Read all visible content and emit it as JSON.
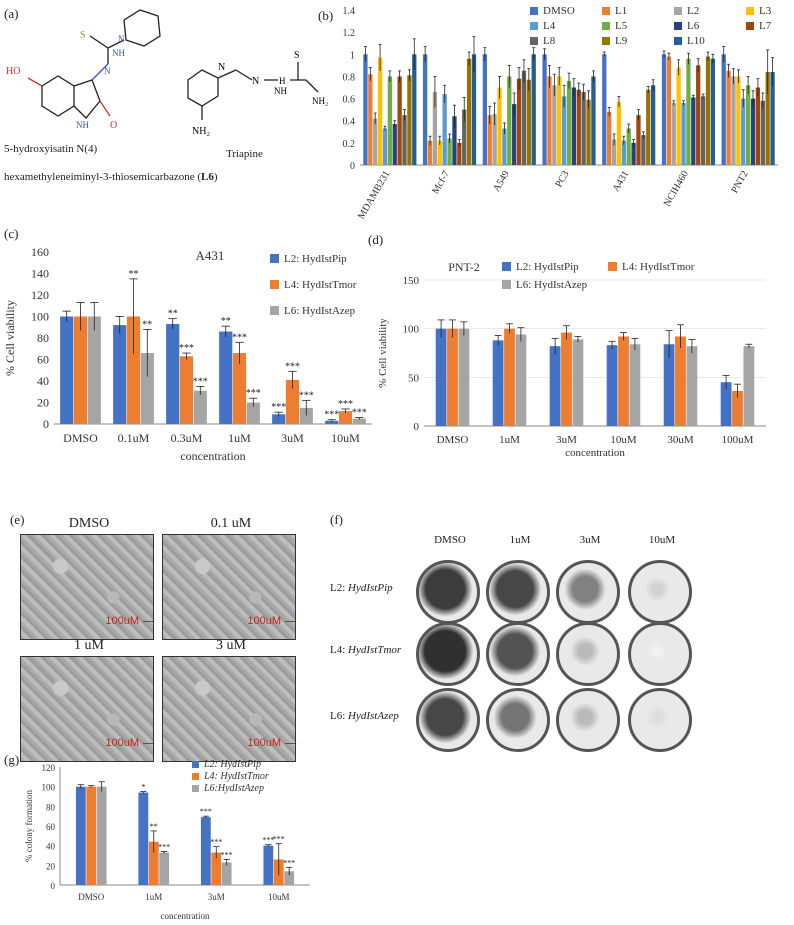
{
  "panel_a": {
    "label": "(a)",
    "molecule1_caption1": "5-hydroxyisatin N(4)",
    "molecule1_caption2": "hexamethyleneiminyl-3-thiosemicarbazone (",
    "molecule1_caption_bold": "L6",
    "molecule1_caption_end": ")",
    "molecule2_caption": "Triapine",
    "atoms": {
      "HO": "HO",
      "N": "N",
      "NH": "NH",
      "NH2": "NH₂",
      "H": "H",
      "O": "O",
      "S": "S",
      "N2": "N"
    }
  },
  "panel_b": {
    "label": "(b)"
  },
  "panel_c": {
    "label": "(c)"
  },
  "panel_d": {
    "label": "(d)"
  },
  "panel_e": {
    "label": "(e)",
    "images": [
      {
        "title": "DMSO",
        "scale": "100uM"
      },
      {
        "title": "0.1 uM",
        "scale": "100uM"
      },
      {
        "title": "1 uM",
        "scale": "100uM"
      },
      {
        "title": "3 uM",
        "scale": "100uM"
      }
    ]
  },
  "panel_f": {
    "label": "(f)",
    "columns": [
      "DMSO",
      "1uM",
      "3uM",
      "10uM"
    ],
    "rows": [
      "L2: HydIstPip",
      "L4: HydIstTmor",
      "L6: HydIstAzep"
    ],
    "row_prefixes": [
      "L2: ",
      "L4: ",
      "L6: "
    ],
    "row_names": [
      "HydIstPip",
      "HydIstTmor",
      "HydIstAzep"
    ],
    "density": [
      [
        0.85,
        0.8,
        0.55,
        0.2
      ],
      [
        0.9,
        0.75,
        0.3,
        0.05
      ],
      [
        0.8,
        0.6,
        0.3,
        0.15
      ]
    ]
  },
  "panel_g": {
    "label": "(g)"
  },
  "chart_data": [
    {
      "id": "b",
      "type": "bar",
      "categories": [
        "MDAMB231",
        "Mcf-7",
        "A549",
        "PC3",
        "A431",
        "NCIH460",
        "PNT2"
      ],
      "ylim": [
        0,
        1.4
      ],
      "yticks": [
        0,
        0.2,
        0.4,
        0.6,
        0.8,
        1,
        1.2,
        1.4
      ],
      "ytick_labels": [
        "0",
        "0.2",
        "0.4",
        "0.6",
        "0.8",
        "1",
        "1.2",
        "1.4"
      ],
      "series": [
        {
          "name": "DMSO",
          "color": "#4472C4",
          "values": [
            1,
            1,
            1,
            1,
            1,
            1,
            1
          ],
          "err": [
            0.07,
            0.07,
            0.06,
            0.05,
            0.02,
            0.03,
            0.07
          ]
        },
        {
          "name": "L1",
          "color": "#ED7D31",
          "values": [
            0.82,
            0.22,
            0.45,
            0.8,
            0.48,
            0.98,
            0.85
          ],
          "err": [
            0.06,
            0.04,
            0.08,
            0.1,
            0.04,
            0.03,
            0.06
          ]
        },
        {
          "name": "L2",
          "color": "#A5A5A5",
          "values": [
            0.42,
            0.66,
            0.46,
            0.72,
            0.23,
            0.56,
            0.8
          ],
          "err": [
            0.05,
            0.14,
            0.1,
            0.1,
            0.05,
            0.02,
            0.07
          ]
        },
        {
          "name": "L3",
          "color": "#FFC000",
          "values": [
            0.97,
            0.22,
            0.7,
            0.8,
            0.57,
            0.88,
            0.8
          ],
          "err": [
            0.12,
            0.04,
            0.1,
            0.08,
            0.05,
            0.07,
            0.06
          ]
        },
        {
          "name": "L4",
          "color": "#5B9BD5",
          "values": [
            0.33,
            0.64,
            0.33,
            0.62,
            0.22,
            0.56,
            0.6
          ],
          "err": [
            0.02,
            0.08,
            0.05,
            0.1,
            0.04,
            0.02,
            0.08
          ]
        },
        {
          "name": "L5",
          "color": "#70AD47",
          "values": [
            0.8,
            0.24,
            0.8,
            0.76,
            0.33,
            0.96,
            0.72
          ],
          "err": [
            0.05,
            0.04,
            0.1,
            0.07,
            0.04,
            0.05,
            0.08
          ]
        },
        {
          "name": "L6",
          "color": "#264478",
          "values": [
            0.37,
            0.44,
            0.55,
            0.7,
            0.2,
            0.61,
            0.6
          ],
          "err": [
            0.03,
            0.1,
            0.1,
            0.08,
            0.03,
            0.02,
            0.07
          ]
        },
        {
          "name": "L7",
          "color": "#9E480E",
          "values": [
            0.8,
            0.2,
            0.78,
            0.68,
            0.45,
            0.9,
            0.7
          ],
          "err": [
            0.05,
            0.03,
            0.1,
            0.06,
            0.05,
            0.06,
            0.08
          ]
        },
        {
          "name": "L8",
          "color": "#636363",
          "values": [
            0.45,
            0.5,
            0.85,
            0.66,
            0.27,
            0.62,
            0.58
          ],
          "err": [
            0.05,
            0.11,
            0.1,
            0.07,
            0.03,
            0.02,
            0.07
          ]
        },
        {
          "name": "L9",
          "color": "#997300",
          "values": [
            0.81,
            0.96,
            0.77,
            0.59,
            0.68,
            0.98,
            0.84
          ],
          "err": [
            0.05,
            0.06,
            0.1,
            0.08,
            0.03,
            0.04,
            0.2
          ]
        },
        {
          "name": "L10",
          "color": "#255E91",
          "values": [
            1,
            1,
            1,
            0.8,
            0.72,
            0.96,
            0.84
          ],
          "err": [
            0.14,
            0.16,
            0.06,
            0.05,
            0.05,
            0.04,
            0.13
          ]
        }
      ]
    },
    {
      "id": "c",
      "type": "bar",
      "title": "A431",
      "ylabel": "% Cell viability",
      "xlabel": "concentration",
      "categories": [
        "DMSO",
        "0.1uM",
        "0.3uM",
        "1uM",
        "3uM",
        "10uM"
      ],
      "ylim": [
        0,
        160
      ],
      "yticks": [
        0,
        20,
        40,
        60,
        80,
        100,
        120,
        140,
        160
      ],
      "ytick_labels": [
        "0",
        "20",
        "40",
        "60",
        "80",
        "100",
        "120",
        "140",
        "160"
      ],
      "series": [
        {
          "name": "L2: HydIstPip",
          "color": "#4472C4",
          "values": [
            100,
            92,
            93,
            86,
            9,
            3
          ],
          "err": [
            5,
            8,
            5,
            5,
            2,
            1
          ],
          "sig": [
            "",
            "",
            "**",
            "**",
            "***",
            "***"
          ]
        },
        {
          "name": "L4: HydIstTmor",
          "color": "#ED7D31",
          "values": [
            100,
            100,
            63,
            66,
            41,
            12
          ],
          "err": [
            13,
            35,
            3,
            10,
            8,
            2
          ],
          "sig": [
            "",
            "**",
            "***",
            "***",
            "***",
            "***"
          ]
        },
        {
          "name": "L6: HydIstAzep",
          "color": "#A5A5A5",
          "values": [
            100,
            66,
            31,
            20,
            15,
            5
          ],
          "err": [
            13,
            22,
            4,
            4,
            7,
            1
          ],
          "sig": [
            "",
            "**",
            "***",
            "***",
            "***",
            "***"
          ]
        }
      ]
    },
    {
      "id": "d",
      "type": "bar",
      "title": "PNT-2",
      "ylabel": "% Cell viability",
      "xlabel": "concentration",
      "categories": [
        "DMSO",
        "1uM",
        "3uM",
        "10uM",
        "30uM",
        "100uM"
      ],
      "ylim": [
        0,
        150
      ],
      "yticks": [
        0,
        50,
        100,
        150
      ],
      "ytick_labels": [
        "0",
        "50",
        "100",
        "150"
      ],
      "series": [
        {
          "name": "L2: HydIstPip",
          "color": "#4472C4",
          "values": [
            100,
            88,
            82,
            83,
            84,
            45
          ],
          "err": [
            9,
            5,
            8,
            4,
            14,
            7
          ]
        },
        {
          "name": "L4: HydIstTmor",
          "color": "#ED7D31",
          "values": [
            100,
            100,
            96,
            92,
            92,
            36
          ],
          "err": [
            9,
            5,
            7,
            4,
            12,
            7
          ]
        },
        {
          "name": "L6: HydIstAzep",
          "color": "#A5A5A5",
          "values": [
            100,
            94,
            89,
            84,
            82,
            82
          ],
          "err": [
            7,
            7,
            3,
            6,
            7,
            2
          ]
        }
      ]
    },
    {
      "id": "g",
      "type": "bar",
      "ylabel": "% colony formation",
      "xlabel": "concentration",
      "categories": [
        "DMSO",
        "1uM",
        "3uM",
        "10uM"
      ],
      "ylim": [
        0,
        120
      ],
      "yticks": [
        0,
        20,
        40,
        60,
        80,
        100,
        120
      ],
      "ytick_labels": [
        "0",
        "20",
        "40",
        "60",
        "80",
        "100",
        "120"
      ],
      "series": [
        {
          "name": "L2: HydIstPip",
          "color": "#4472C4",
          "values": [
            100,
            94,
            69,
            40
          ],
          "err": [
            2,
            1,
            1,
            1
          ],
          "sig": [
            "",
            "*",
            "***",
            "***"
          ]
        },
        {
          "name": "L4: HydIstTmor",
          "color": "#ED7D31",
          "values": [
            100,
            44,
            33,
            26
          ],
          "err": [
            1,
            11,
            6,
            16
          ],
          "sig": [
            "",
            "**",
            "***",
            "***"
          ]
        },
        {
          "name": "L6:HydIstAzep",
          "color": "#A5A5A5",
          "values": [
            100,
            33,
            23,
            14
          ],
          "err": [
            5,
            1,
            3,
            4
          ],
          "sig": [
            "",
            "***",
            "***",
            "***"
          ]
        }
      ]
    }
  ]
}
